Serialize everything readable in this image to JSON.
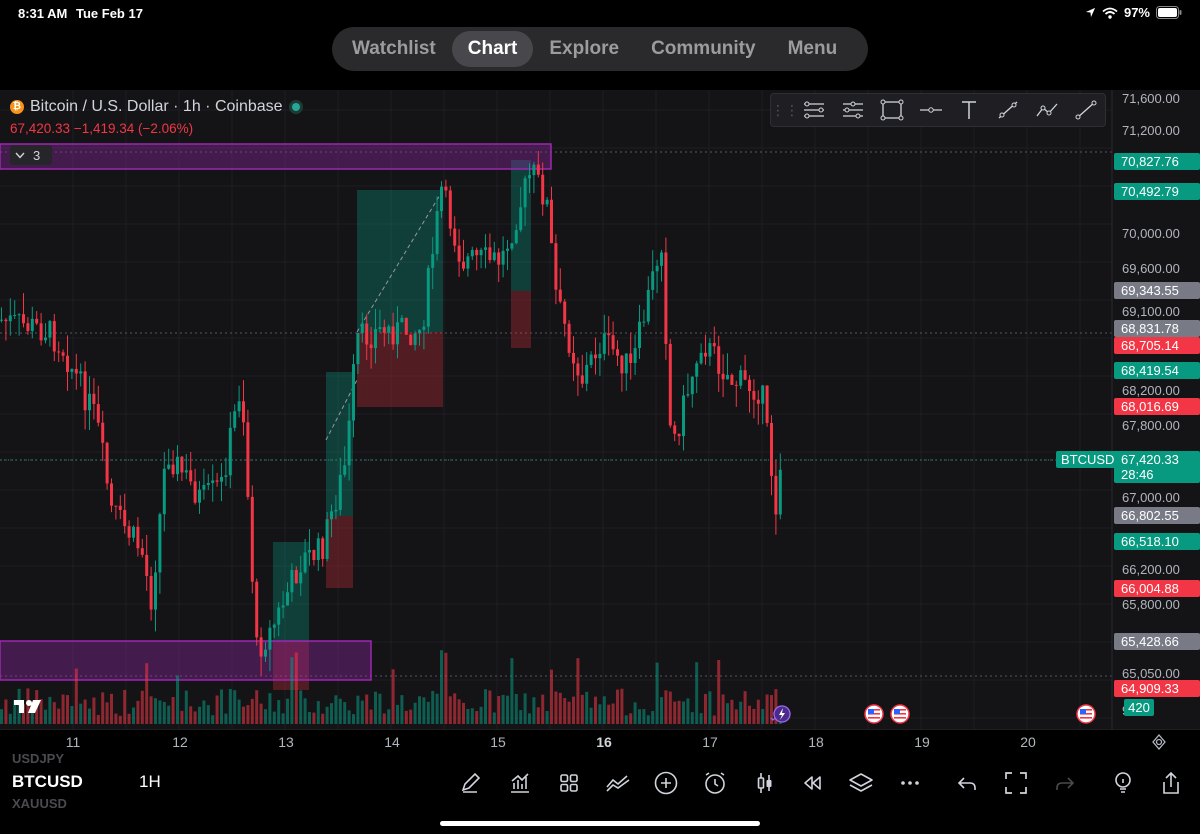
{
  "status_bar": {
    "time": "8:31 AM",
    "date": "Tue Feb 17",
    "battery": "97%"
  },
  "nav": {
    "tabs": [
      "Watchlist",
      "Chart",
      "Explore",
      "Community",
      "Menu"
    ],
    "active": "Chart"
  },
  "legend": {
    "title": "Bitcoin / U.S. Dollar · 1h · Coinbase",
    "price": "67,420.33",
    "change": "−1,419.34 (−2.06%)",
    "collapsed_count": "3"
  },
  "drawing_tools": [
    "horizontal-ray-icon",
    "parallel-channel-icon",
    "rectangle-icon",
    "horizontal-line-icon",
    "text-icon",
    "trend-line-icon",
    "path-icon",
    "line-icon"
  ],
  "price_axis": {
    "ticks": [
      "71,600.00",
      "71,200.00",
      "70,000.00",
      "69,600.00",
      "69,100.00",
      "68,200.00",
      "67,800.00",
      "67,000.00",
      "66,200.00",
      "65,800.00",
      "65,050.00"
    ],
    "badges": [
      {
        "text": "70,827.76",
        "color": "#089981"
      },
      {
        "text": "70,492.79",
        "color": "#089981"
      },
      {
        "text": "69,343.55",
        "color": "#787b86"
      },
      {
        "text": "68,831.78",
        "color": "#787b86"
      },
      {
        "text": "68,705.14",
        "color": "#f23645"
      },
      {
        "text": "68,419.54",
        "color": "#089981"
      },
      {
        "text": "68,016.69",
        "color": "#f23645"
      },
      {
        "text": "67,420.33",
        "color": "#089981"
      },
      {
        "text": "28:46",
        "color": "#089981"
      },
      {
        "text": "66,802.55",
        "color": "#787b86"
      },
      {
        "text": "66,518.10",
        "color": "#089981"
      },
      {
        "text": "66,004.88",
        "color": "#f23645"
      },
      {
        "text": "65,428.66",
        "color": "#787b86"
      },
      {
        "text": "64,909.33",
        "color": "#f23645"
      },
      {
        "text": "420",
        "color": "#089981"
      }
    ],
    "symbol_tag": "BTCUSD",
    "partial_tick": "90.00"
  },
  "time_axis": [
    "11",
    "12",
    "13",
    "14",
    "15",
    "16",
    "17",
    "18",
    "19",
    "20"
  ],
  "bottom": {
    "prev_symbol": "USDJPY",
    "symbol": "BTCUSD",
    "next_symbol": "XAUUSD",
    "timeframe": "1H",
    "tools": [
      "pencil-icon",
      "indicators-icon",
      "layout-grid-icon",
      "compare-icon",
      "add-icon",
      "alert-icon",
      "candle-type-icon",
      "replay-icon",
      "layers-icon",
      "more-icon",
      "undo-icon",
      "fullscreen-icon",
      "redo-icon",
      "ideas-icon",
      "share-icon"
    ]
  },
  "colors": {
    "up": "#089981",
    "down": "#f23645",
    "zone": "#9c27b0",
    "background": "#141417"
  }
}
